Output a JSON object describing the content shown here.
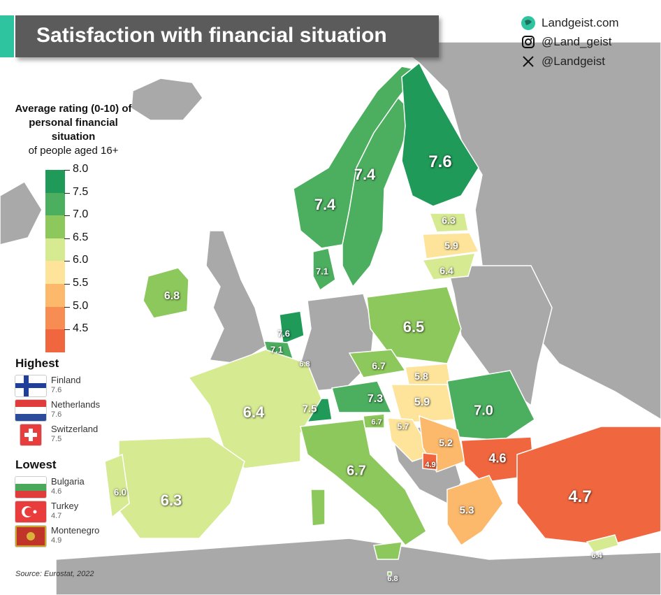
{
  "title": "Satisfaction with financial situation",
  "social": {
    "website": "Landgeist.com",
    "instagram": "@Land_geist",
    "x": "@Landgeist"
  },
  "legend": {
    "title_bold": "Average rating (0-10) of personal financial situation",
    "subtitle": "of people aged 16+",
    "ticks": [
      "8.0",
      "7.5",
      "7.0",
      "6.5",
      "6.0",
      "5.5",
      "5.0",
      "4.5"
    ],
    "bin_colors": [
      "#1f9a58",
      "#4caf60",
      "#8dc85c",
      "#d6ea92",
      "#fde49a",
      "#fcb86b",
      "#f78d52",
      "#f0663f"
    ]
  },
  "highest": {
    "heading": "Highest",
    "items": [
      {
        "country": "Finland",
        "value": "7.6"
      },
      {
        "country": "Netherlands",
        "value": "7.6"
      },
      {
        "country": "Switzerland",
        "value": "7.5"
      }
    ]
  },
  "lowest": {
    "heading": "Lowest",
    "items": [
      {
        "country": "Bulgaria",
        "value": "4.6"
      },
      {
        "country": "Turkey",
        "value": "4.7"
      },
      {
        "country": "Montenegro",
        "value": "4.9"
      }
    ]
  },
  "source": "Source: Eurostat, 2022",
  "map_values": {
    "finland": "7.6",
    "sweden": "7.4",
    "norway": "7.4",
    "estonia": "6.3",
    "latvia": "5.9",
    "lithuania": "6.4",
    "denmark": "7.1",
    "ireland": "6.8",
    "netherlands": "7.6",
    "belgium": "7.1",
    "luxembourg": "6.8",
    "poland": "6.5",
    "czechia": "6.7",
    "slovakia": "5.8",
    "hungary": "5.9",
    "austria": "7.3",
    "switzerland": "7.5",
    "slovenia": "6.7",
    "croatia": "5.7",
    "serbia": "5.2",
    "romania": "7.0",
    "bulgaria": "4.6",
    "montenegro": "4.9",
    "france": "6.4",
    "spain": "6.3",
    "portugal": "6.0",
    "italy": "6.7",
    "greece": "5.3",
    "turkey": "4.7",
    "cyprus": "6.4",
    "malta": "6.8"
  }
}
